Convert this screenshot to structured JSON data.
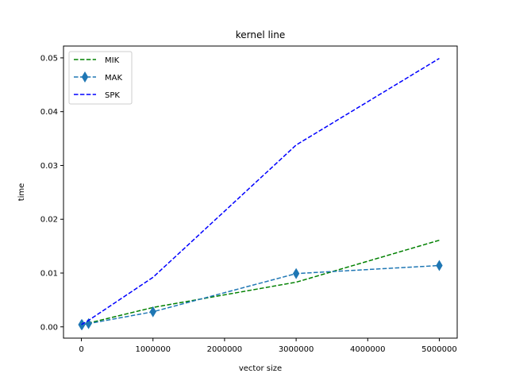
{
  "chart_data": {
    "type": "line",
    "title": "kernel line",
    "xlabel": "vector size",
    "ylabel": "time",
    "xlim": [
      -250000,
      5250000
    ],
    "ylim": [
      -0.0021,
      0.0522
    ],
    "xticks": [
      0,
      1000000,
      2000000,
      3000000,
      4000000,
      5000000
    ],
    "xtick_labels": [
      "0",
      "1000000",
      "2000000",
      "3000000",
      "4000000",
      "5000000"
    ],
    "yticks": [
      0.0,
      0.01,
      0.02,
      0.03,
      0.04,
      0.05
    ],
    "ytick_labels": [
      "0.00",
      "0.01",
      "0.02",
      "0.03",
      "0.04",
      "0.05"
    ],
    "grid": false,
    "legend_position": "top-left",
    "series": [
      {
        "name": "MIK",
        "color": "#008000",
        "linestyle": "dashed",
        "marker": "none",
        "x": [
          1000,
          10000,
          100000,
          1000000,
          3000000,
          5000000
        ],
        "y": [
          0.0004,
          0.0004,
          0.0007,
          0.0036,
          0.0083,
          0.0161
        ]
      },
      {
        "name": "MAK",
        "color": "#1f77b4",
        "linestyle": "dashed",
        "marker": "thin_diamond",
        "x": [
          1000,
          10000,
          100000,
          1000000,
          3000000,
          5000000
        ],
        "y": [
          0.0004,
          0.0004,
          0.0006,
          0.0028,
          0.0099,
          0.0114
        ]
      },
      {
        "name": "SPK",
        "color": "#0000ff",
        "linestyle": "dashed",
        "marker": "none",
        "x": [
          1000,
          10000,
          100000,
          1000000,
          3000000,
          5000000
        ],
        "y": [
          0.0004,
          0.0005,
          0.0012,
          0.0092,
          0.0338,
          0.0499
        ]
      }
    ]
  }
}
